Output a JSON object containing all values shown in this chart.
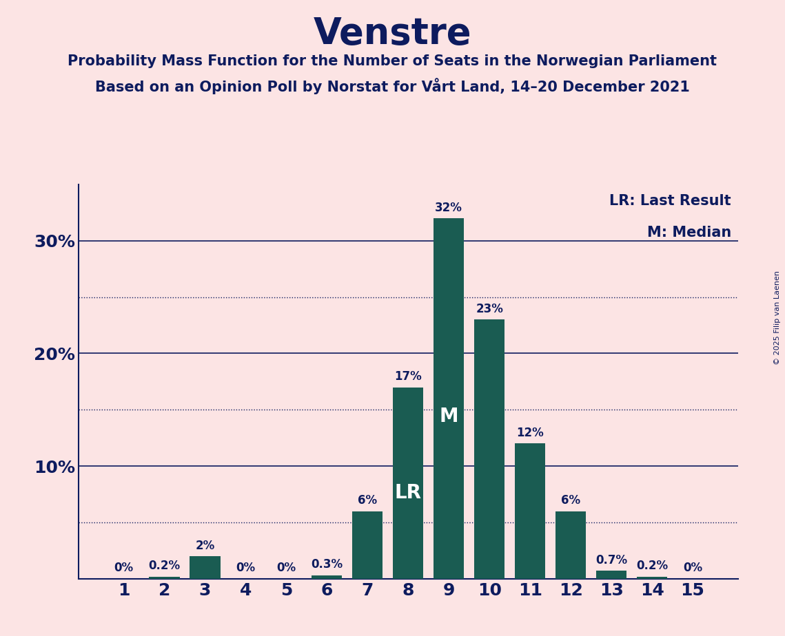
{
  "title": "Venstre",
  "subtitle1": "Probability Mass Function for the Number of Seats in the Norwegian Parliament",
  "subtitle2": "Based on an Opinion Poll by Norstat for Vårt Land, 14–20 December 2021",
  "copyright": "© 2025 Filip van Laenen",
  "background_color": "#fce4e4",
  "bar_color": "#1a5c52",
  "axis_color": "#0d1b5e",
  "categories": [
    1,
    2,
    3,
    4,
    5,
    6,
    7,
    8,
    9,
    10,
    11,
    12,
    13,
    14,
    15
  ],
  "values": [
    0.0,
    0.2,
    2.0,
    0.0,
    0.0,
    0.3,
    6.0,
    17.0,
    32.0,
    23.0,
    12.0,
    6.0,
    0.7,
    0.2,
    0.0
  ],
  "labels": [
    "0%",
    "0.2%",
    "2%",
    "0%",
    "0%",
    "0.3%",
    "6%",
    "17%",
    "32%",
    "23%",
    "12%",
    "6%",
    "0.7%",
    "0.2%",
    "0%"
  ],
  "LR_seat": 8,
  "M_seat": 9,
  "ylim": [
    0,
    35
  ],
  "solid_lines": [
    0,
    10,
    20,
    30
  ],
  "dotted_lines": [
    5.0,
    15.0,
    25.0
  ],
  "legend_LR": "LR: Last Result",
  "legend_M": "M: Median"
}
